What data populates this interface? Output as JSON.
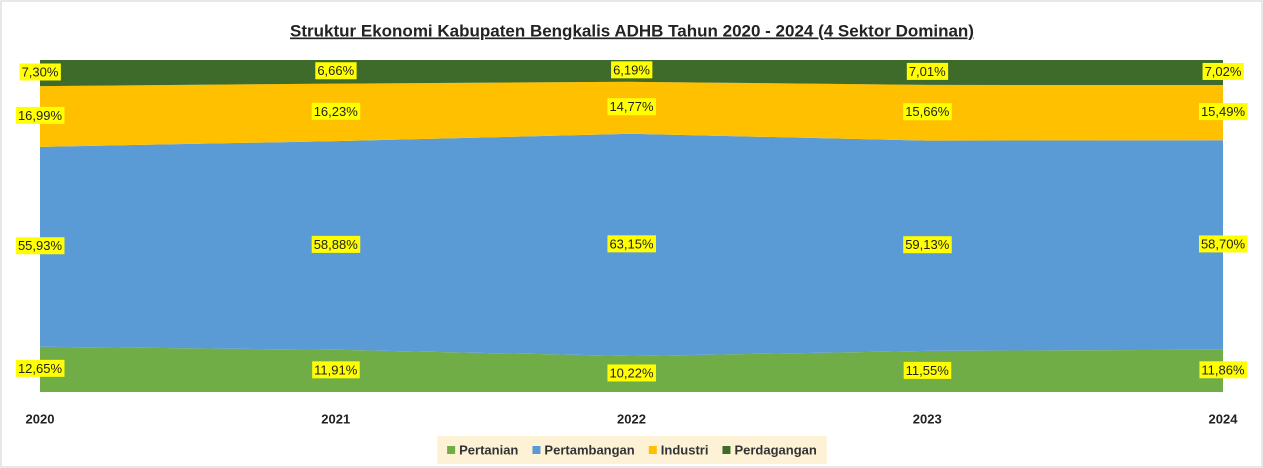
{
  "chart_data": {
    "type": "area",
    "stacked": "percent",
    "title": "Struktur Ekonomi Kabupaten Bengkalis ADHB Tahun 2020 - 2024 (4 Sektor Dominan)",
    "categories": [
      "2020",
      "2021",
      "2022",
      "2023",
      "2024"
    ],
    "legend": "bottom",
    "series": [
      {
        "name": "Pertanian",
        "color": "#70ad47",
        "values": [
          12.65,
          11.91,
          10.22,
          11.55,
          11.86
        ],
        "value_labels": [
          "12,65%",
          "11,91%",
          "10,22%",
          "11,55%",
          "11,86%"
        ]
      },
      {
        "name": "Pertambangan",
        "color": "#5b9bd5",
        "values": [
          55.93,
          58.88,
          63.15,
          59.13,
          58.7
        ],
        "value_labels": [
          "55,93%",
          "58,88%",
          "63,15%",
          "59,13%",
          "58,70%"
        ]
      },
      {
        "name": "Industri",
        "color": "#ffc000",
        "values": [
          16.99,
          16.23,
          14.77,
          15.66,
          15.49
        ],
        "value_labels": [
          "16,99%",
          "16,23%",
          "14,77%",
          "15,66%",
          "15,49%"
        ]
      },
      {
        "name": "Perdagangan",
        "color": "#3f6b2a",
        "values": [
          7.3,
          6.66,
          6.19,
          7.01,
          7.02
        ],
        "value_labels": [
          "7,30%",
          "6,66%",
          "6,19%",
          "7,01%",
          "7,02%"
        ]
      }
    ]
  }
}
